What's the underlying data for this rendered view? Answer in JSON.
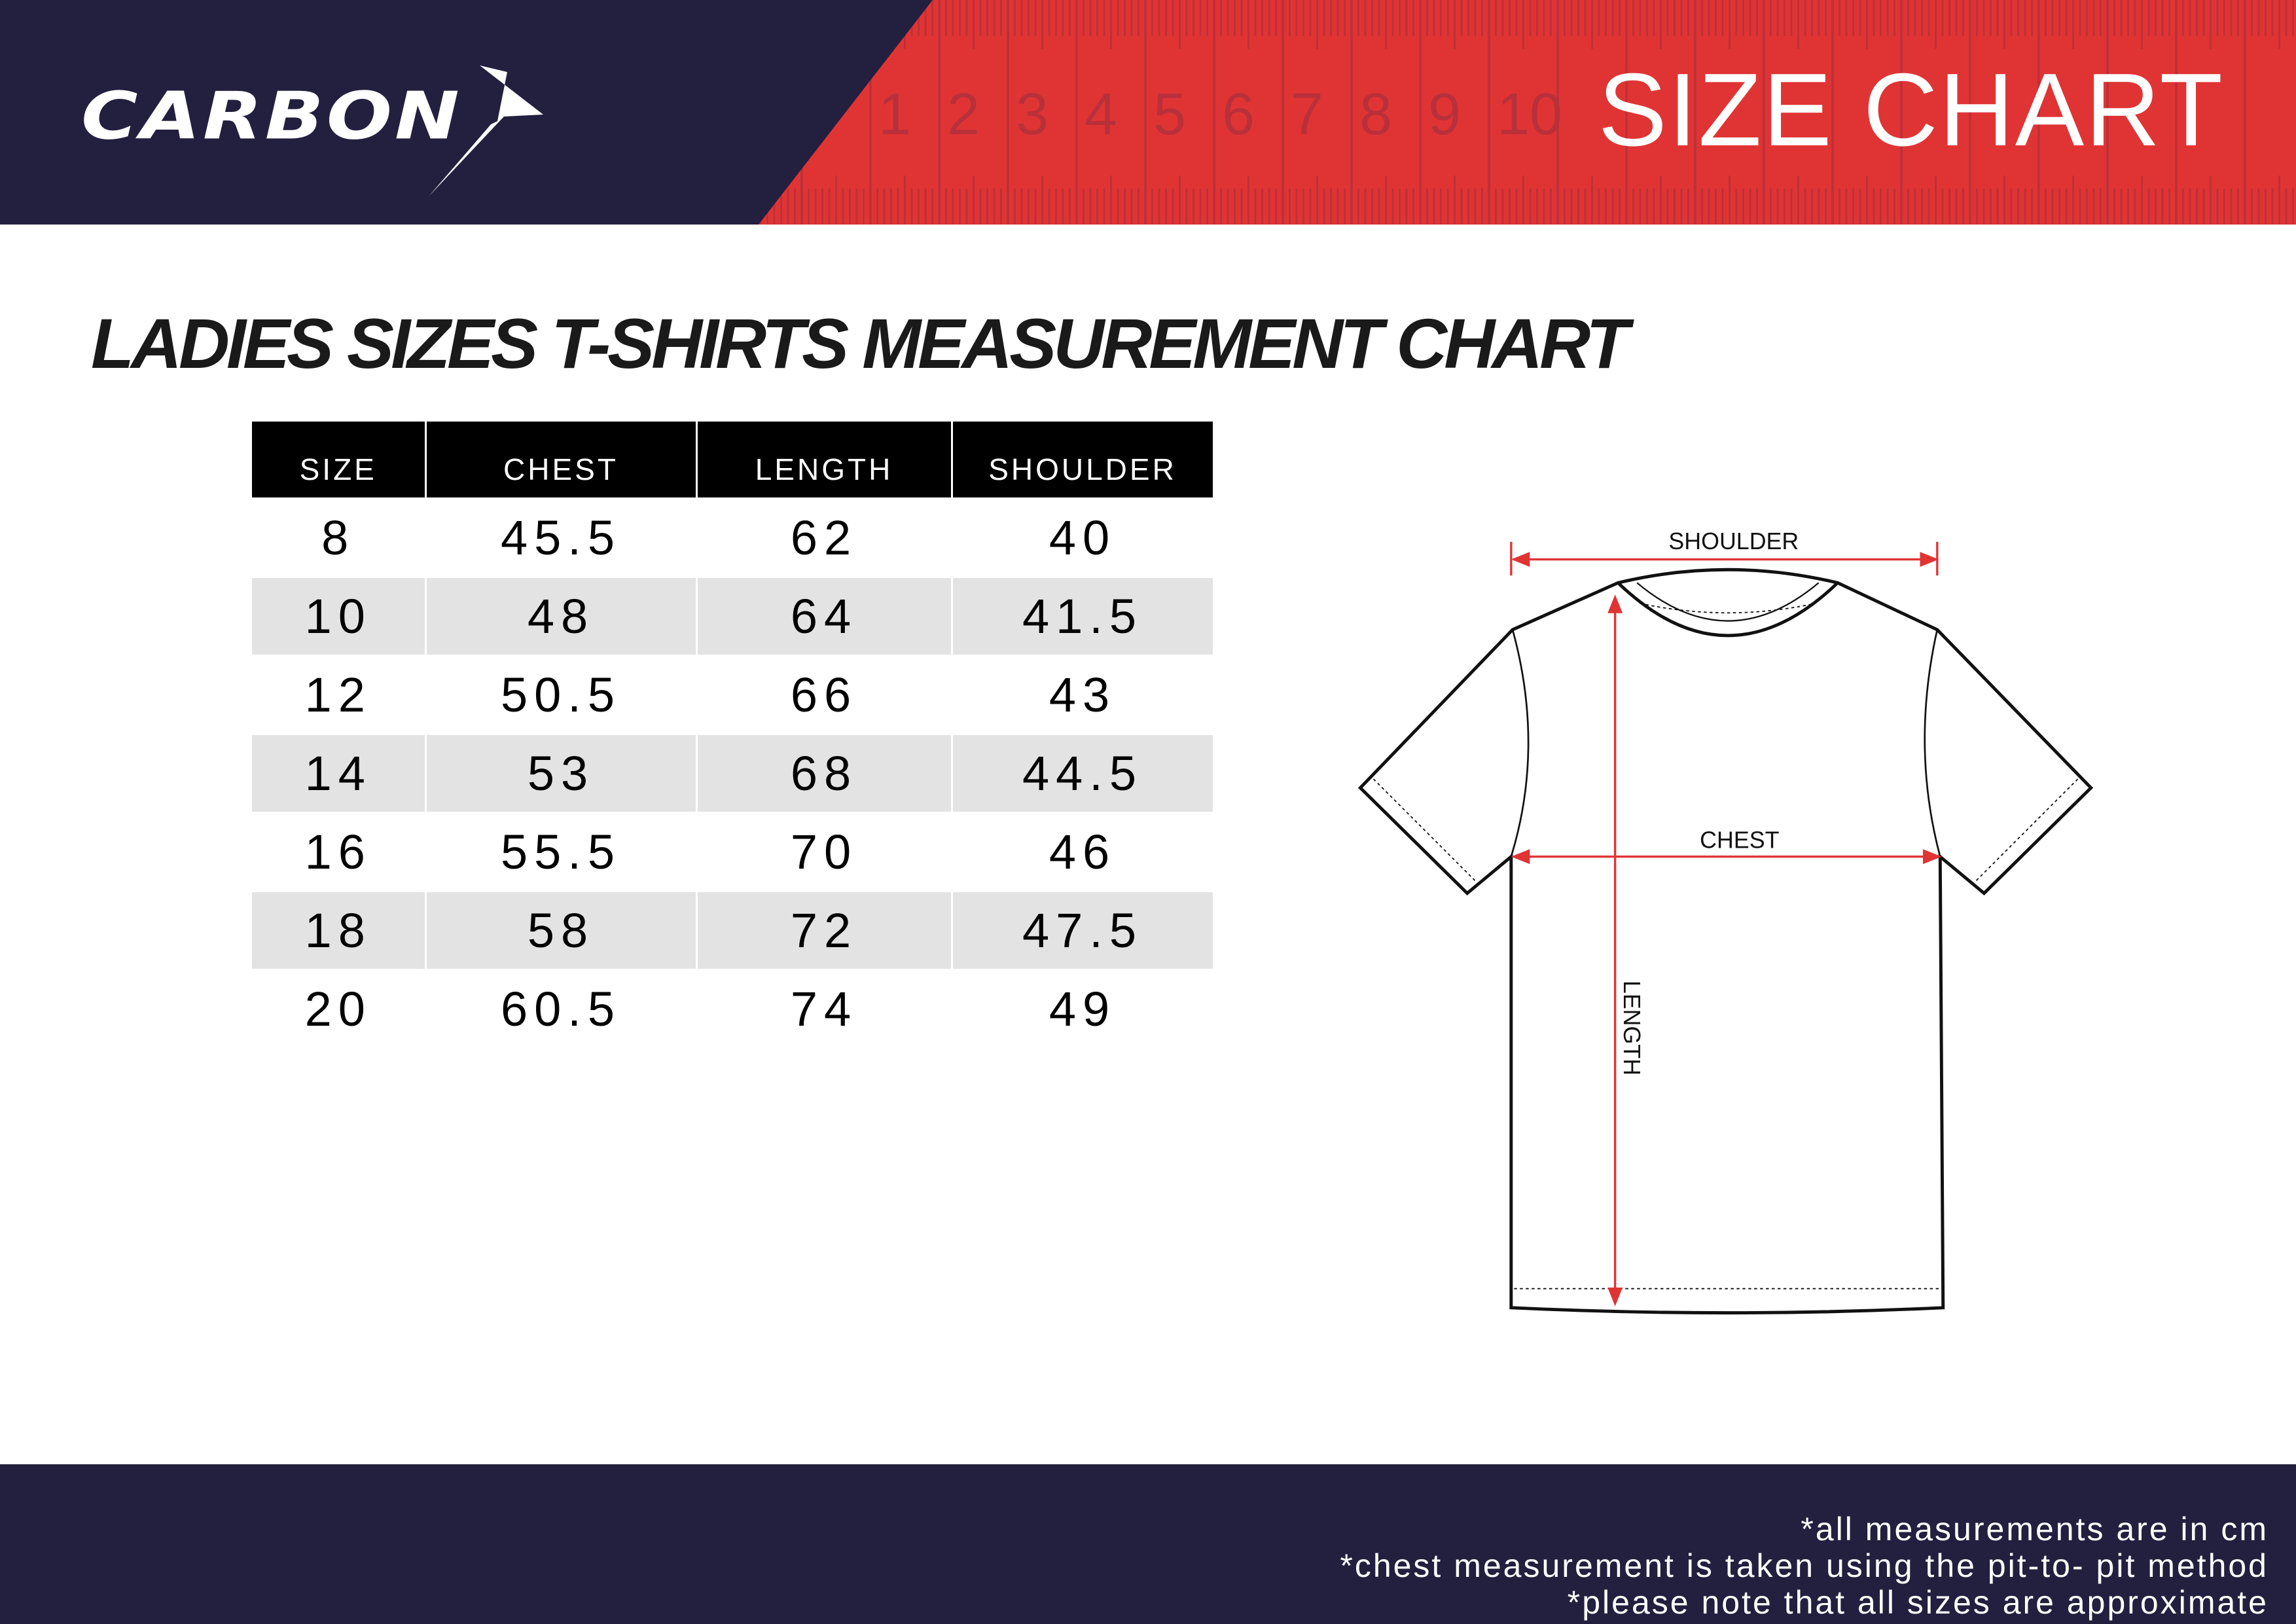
{
  "header": {
    "brand": "CARBON",
    "title": "SIZE CHART",
    "ruler_numbers": [
      "1",
      "2",
      "3",
      "4",
      "5",
      "6",
      "7",
      "8",
      "9",
      "10"
    ],
    "colors": {
      "navy": "#231f3f",
      "red": "#e03434"
    }
  },
  "main": {
    "title": "LADIES SIZES T-SHIRTS MEASUREMENT CHART",
    "table": {
      "columns": [
        "SIZE",
        "CHEST",
        "LENGTH",
        "SHOULDER"
      ],
      "rows": [
        [
          "8",
          "45.5",
          "62",
          "40"
        ],
        [
          "10",
          "48",
          "64",
          "41.5"
        ],
        [
          "12",
          "50.5",
          "66",
          "43"
        ],
        [
          "14",
          "53",
          "68",
          "44.5"
        ],
        [
          "16",
          "55.5",
          "70",
          "46"
        ],
        [
          "18",
          "58",
          "72",
          "47.5"
        ],
        [
          "20",
          "60.5",
          "74",
          "49"
        ]
      ]
    },
    "diagram": {
      "shoulder": "SHOULDER",
      "chest": "CHEST",
      "length": "LENGTH"
    }
  },
  "footer": {
    "notes": [
      "*all measurements are in cm",
      "*chest measurement is taken using the pit-to- pit method",
      "*please note that all sizes are approximate"
    ]
  }
}
